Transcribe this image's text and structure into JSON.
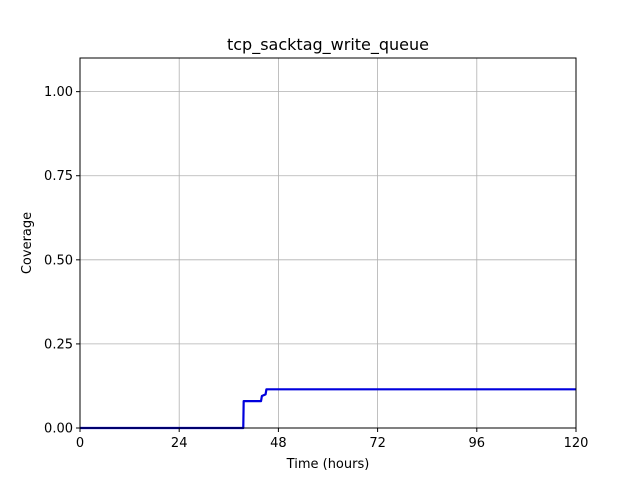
{
  "chart_data": {
    "type": "line",
    "title": "tcp_sacktag_write_queue",
    "xlabel": "Time (hours)",
    "ylabel": "Coverage",
    "xlim": [
      0,
      120
    ],
    "ylim": [
      0,
      1.1
    ],
    "xticks": [
      0,
      24,
      48,
      72,
      96,
      120
    ],
    "xtick_labels": [
      "0",
      "24",
      "48",
      "72",
      "96",
      "120"
    ],
    "yticks": [
      0.0,
      0.25,
      0.5,
      0.75,
      1.0
    ],
    "ytick_labels": [
      "0.00",
      "0.25",
      "0.50",
      "0.75",
      "1.00"
    ],
    "grid": true,
    "series": [
      {
        "color": "#0000dd",
        "x": [
          0,
          39.5,
          39.6,
          43.8,
          44.0,
          44.9,
          45.1,
          120
        ],
        "y": [
          0,
          0,
          0.08,
          0.08,
          0.095,
          0.1,
          0.115,
          0.115
        ]
      }
    ]
  }
}
